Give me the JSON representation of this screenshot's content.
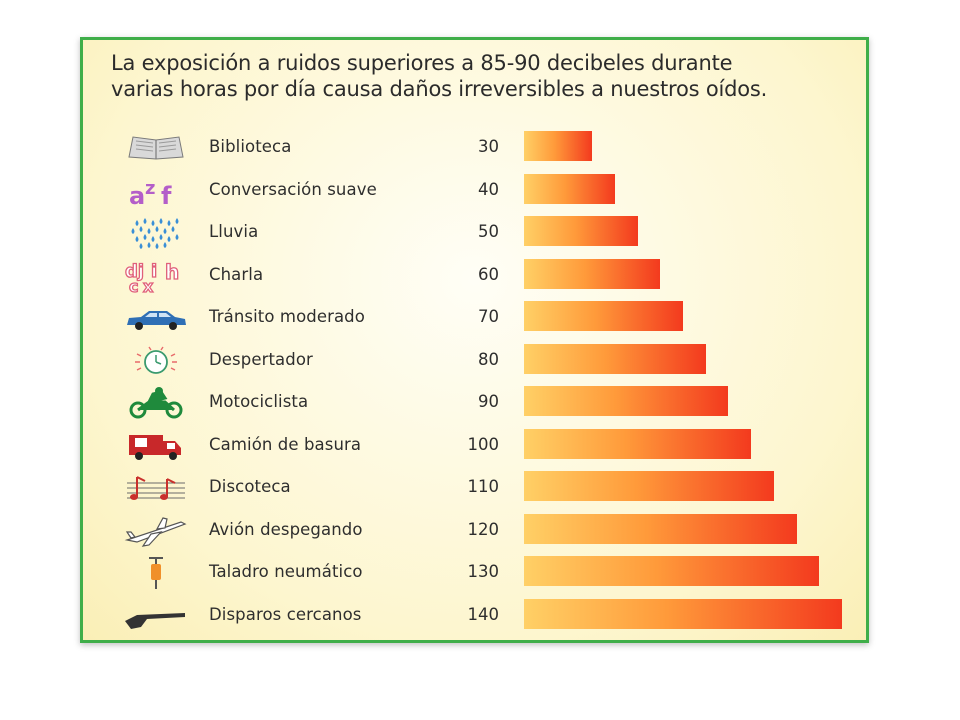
{
  "title": "La exposición a ruidos superiores a 85-90 decibeles durante\nvarias horas por día causa daños irreversibles a nuestros oídos.",
  "colors": {
    "border": "#3fae49",
    "bar_start": "#ffd066",
    "bar_end": "#f33a1e"
  },
  "chart_data": {
    "type": "bar",
    "orientation": "horizontal",
    "title": "La exposición a ruidos superiores a 85-90 decibeles durante varias horas por día causa daños irreversibles a nuestros oídos.",
    "categories": [
      "Biblioteca",
      "Conversación suave",
      "Lluvia",
      "Charla",
      "Tránsito moderado",
      "Despertador",
      "Motociclista",
      "Camión de basura",
      "Discoteca",
      "Avión despegando",
      "Taladro neumático",
      "Disparos cercanos"
    ],
    "values": [
      30,
      40,
      50,
      60,
      70,
      80,
      90,
      100,
      110,
      120,
      130,
      140
    ],
    "value_labels": [
      "30",
      "40",
      "50",
      "60",
      "70",
      "80",
      "90",
      "100",
      "110",
      "120",
      "130",
      "140"
    ],
    "icons": [
      "book-icon",
      "letters-azf-icon",
      "rain-drops-icon",
      "letters-chat-icon",
      "car-icon",
      "alarm-clock-icon",
      "motorcycle-icon",
      "garbage-truck-icon",
      "music-notes-icon",
      "airplane-icon",
      "jackhammer-icon",
      "rifle-icon"
    ],
    "grid": false,
    "legend": "none"
  }
}
